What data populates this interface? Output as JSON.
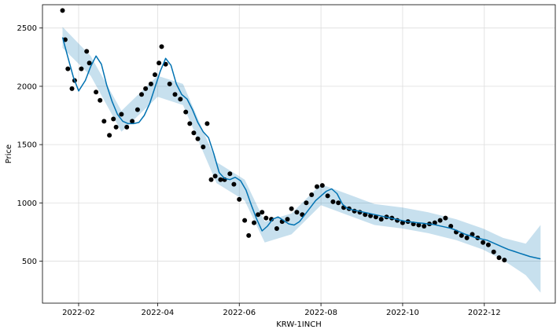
{
  "chart_data": {
    "type": "line",
    "title": "",
    "xlabel": "KRW-1INCH",
    "ylabel": "Price",
    "x_ticks": [
      "2022-02",
      "2022-04",
      "2022-06",
      "2022-08",
      "2022-10",
      "2022-12"
    ],
    "y_ticks": [
      500,
      1000,
      1500,
      2000,
      2500
    ],
    "xlim": [
      "2022-01-05",
      "2023-01-23"
    ],
    "ylim": [
      140,
      2700
    ],
    "grid": true,
    "legend": "none",
    "colors": {
      "forecast": "#0072B2",
      "uncertainty": "#0072B2",
      "observed": "#000000",
      "grid": "#dddddd",
      "frame": "#000000"
    },
    "series": [
      {
        "role": "observed",
        "style": "points",
        "x": [
          "2022-01-20",
          "2022-01-22",
          "2022-01-24",
          "2022-01-27",
          "2022-01-29",
          "2022-02-03",
          "2022-02-07",
          "2022-02-09",
          "2022-02-14",
          "2022-02-17",
          "2022-02-20",
          "2022-02-24",
          "2022-02-27",
          "2022-03-01",
          "2022-03-05",
          "2022-03-09",
          "2022-03-13",
          "2022-03-17",
          "2022-03-20",
          "2022-03-23",
          "2022-03-27",
          "2022-03-30",
          "2022-04-02",
          "2022-04-04",
          "2022-04-07",
          "2022-04-10",
          "2022-04-14",
          "2022-04-18",
          "2022-04-22",
          "2022-04-25",
          "2022-04-28",
          "2022-05-01",
          "2022-05-05",
          "2022-05-08",
          "2022-05-11",
          "2022-05-14",
          "2022-05-18",
          "2022-05-21",
          "2022-05-25",
          "2022-05-28",
          "2022-06-01",
          "2022-06-05",
          "2022-06-08",
          "2022-06-12",
          "2022-06-15",
          "2022-06-18",
          "2022-06-21",
          "2022-06-25",
          "2022-06-29",
          "2022-07-03",
          "2022-07-07",
          "2022-07-10",
          "2022-07-14",
          "2022-07-18",
          "2022-07-21",
          "2022-07-25",
          "2022-07-29",
          "2022-08-02",
          "2022-08-06",
          "2022-08-10",
          "2022-08-14",
          "2022-08-18",
          "2022-08-22",
          "2022-08-26",
          "2022-08-30",
          "2022-09-03",
          "2022-09-07",
          "2022-09-11",
          "2022-09-15",
          "2022-09-19",
          "2022-09-23",
          "2022-09-27",
          "2022-10-01",
          "2022-10-05",
          "2022-10-09",
          "2022-10-13",
          "2022-10-17",
          "2022-10-21",
          "2022-10-25",
          "2022-10-29",
          "2022-11-02",
          "2022-11-06",
          "2022-11-10",
          "2022-11-14",
          "2022-11-18",
          "2022-11-22",
          "2022-11-26",
          "2022-11-30",
          "2022-12-04",
          "2022-12-08",
          "2022-12-12",
          "2022-12-16"
        ],
        "y": [
          2650,
          2400,
          2150,
          1980,
          2050,
          2150,
          2300,
          2200,
          1950,
          1880,
          1700,
          1580,
          1720,
          1650,
          1760,
          1650,
          1700,
          1800,
          1930,
          1980,
          2020,
          2100,
          2200,
          2340,
          2190,
          2020,
          1930,
          1890,
          1780,
          1680,
          1600,
          1550,
          1480,
          1680,
          1200,
          1230,
          1200,
          1200,
          1250,
          1160,
          1030,
          850,
          720,
          830,
          900,
          920,
          870,
          860,
          780,
          840,
          860,
          950,
          920,
          900,
          1000,
          1070,
          1140,
          1150,
          1060,
          1010,
          1000,
          960,
          950,
          930,
          920,
          900,
          890,
          880,
          860,
          880,
          870,
          850,
          830,
          840,
          820,
          810,
          800,
          820,
          830,
          850,
          870,
          800,
          750,
          720,
          700,
          730,
          700,
          660,
          640,
          580,
          530,
          510
        ]
      },
      {
        "role": "forecast",
        "style": "line",
        "x": [
          "2022-01-20",
          "2022-01-24",
          "2022-01-28",
          "2022-02-01",
          "2022-02-06",
          "2022-02-10",
          "2022-02-14",
          "2022-02-18",
          "2022-02-22",
          "2022-02-26",
          "2022-03-02",
          "2022-03-06",
          "2022-03-10",
          "2022-03-14",
          "2022-03-18",
          "2022-03-22",
          "2022-03-26",
          "2022-03-30",
          "2022-04-03",
          "2022-04-07",
          "2022-04-11",
          "2022-04-15",
          "2022-04-19",
          "2022-04-23",
          "2022-04-27",
          "2022-05-01",
          "2022-05-05",
          "2022-05-09",
          "2022-05-13",
          "2022-05-17",
          "2022-05-21",
          "2022-05-25",
          "2022-05-29",
          "2022-06-02",
          "2022-06-06",
          "2022-06-10",
          "2022-06-14",
          "2022-06-18",
          "2022-06-22",
          "2022-06-26",
          "2022-06-30",
          "2022-07-04",
          "2022-07-08",
          "2022-07-12",
          "2022-07-16",
          "2022-07-20",
          "2022-07-24",
          "2022-07-28",
          "2022-08-01",
          "2022-08-05",
          "2022-08-09",
          "2022-08-13",
          "2022-08-17",
          "2022-08-21",
          "2022-08-25",
          "2022-08-29",
          "2022-09-02",
          "2022-09-06",
          "2022-09-10",
          "2022-09-14",
          "2022-09-18",
          "2022-09-22",
          "2022-09-26",
          "2022-09-30",
          "2022-10-04",
          "2022-10-08",
          "2022-10-12",
          "2022-10-16",
          "2022-10-20",
          "2022-10-24",
          "2022-10-28",
          "2022-11-01",
          "2022-11-05",
          "2022-11-09",
          "2022-11-13",
          "2022-11-17",
          "2022-11-21",
          "2022-11-25",
          "2022-11-29",
          "2022-12-03",
          "2022-12-07",
          "2022-12-11",
          "2022-12-15",
          "2022-12-19",
          "2022-12-23",
          "2022-12-27",
          "2022-12-31",
          "2023-01-04",
          "2023-01-08",
          "2023-01-12"
        ],
        "y": [
          2420,
          2250,
          2080,
          1960,
          2050,
          2170,
          2260,
          2190,
          2010,
          1870,
          1760,
          1700,
          1680,
          1680,
          1690,
          1750,
          1850,
          1990,
          2130,
          2240,
          2180,
          2020,
          1930,
          1890,
          1800,
          1690,
          1610,
          1560,
          1420,
          1260,
          1210,
          1200,
          1220,
          1190,
          1110,
          980,
          860,
          760,
          800,
          860,
          880,
          850,
          820,
          810,
          840,
          900,
          960,
          1020,
          1060,
          1100,
          1120,
          1080,
          990,
          950,
          940,
          930,
          920,
          910,
          900,
          890,
          880,
          870,
          860,
          850,
          840,
          835,
          830,
          825,
          820,
          815,
          805,
          795,
          785,
          770,
          750,
          730,
          715,
          700,
          690,
          680,
          660,
          640,
          620,
          600,
          585,
          570,
          555,
          540,
          530,
          520
        ]
      },
      {
        "role": "uncertainty",
        "style": "band",
        "x": [
          "2022-01-20",
          "2022-02-10",
          "2022-03-05",
          "2022-04-01",
          "2022-04-20",
          "2022-05-15",
          "2022-06-05",
          "2022-06-20",
          "2022-07-10",
          "2022-08-01",
          "2022-08-20",
          "2022-09-10",
          "2022-10-01",
          "2022-10-20",
          "2022-11-10",
          "2022-11-30",
          "2022-12-15",
          "2023-01-01",
          "2023-01-12"
        ],
        "lower": [
          2330,
          2090,
          1610,
          1910,
          1840,
          1170,
          1020,
          660,
          730,
          980,
          900,
          810,
          780,
          740,
          680,
          600,
          510,
          380,
          230
        ],
        "upper": [
          2510,
          2260,
          1790,
          2090,
          2020,
          1350,
          1200,
          840,
          910,
          1160,
          1080,
          990,
          960,
          920,
          860,
          780,
          700,
          650,
          810
        ]
      }
    ]
  }
}
